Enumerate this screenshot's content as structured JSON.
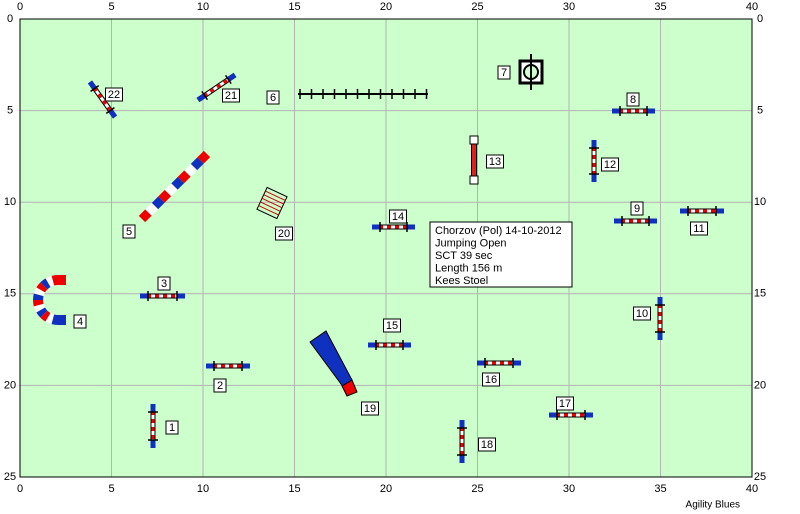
{
  "axes": {
    "xticks": [
      0,
      5,
      10,
      15,
      20,
      25,
      30,
      35,
      40
    ],
    "yticks": [
      0,
      5,
      10,
      15,
      20,
      25
    ],
    "xlim": [
      0,
      40
    ],
    "ylim": [
      0,
      25
    ]
  },
  "obstacles": [
    "1",
    "2",
    "3",
    "4",
    "5",
    "6",
    "7",
    "8",
    "9",
    "10",
    "11",
    "12",
    "13",
    "14",
    "15",
    "16",
    "17",
    "18",
    "19",
    "20",
    "21",
    "22"
  ],
  "info": [
    "Chorzov (Pol) 14-10-2012",
    "Jumping Open",
    "SCT 39 sec",
    "Length 156 m",
    "Kees Stoel"
  ],
  "footer": "Agility Blues"
}
